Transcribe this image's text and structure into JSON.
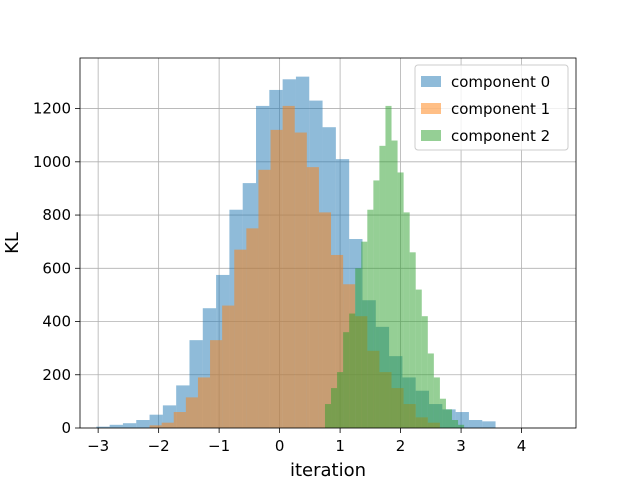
{
  "chart_data": {
    "type": "histogram",
    "title": "",
    "xlabel": "iteration",
    "ylabel": "KL",
    "xlim": [
      -3.3,
      4.9
    ],
    "ylim": [
      0,
      1390
    ],
    "xticks": [
      -3,
      -2,
      -1,
      0,
      1,
      2,
      3,
      4
    ],
    "xtick_labels": [
      "−3",
      "−2",
      "−1",
      "0",
      "1",
      "2",
      "3",
      "4"
    ],
    "yticks": [
      0,
      200,
      400,
      600,
      800,
      1000,
      1200
    ],
    "ytick_labels": [
      "0",
      "200",
      "400",
      "600",
      "800",
      "1000",
      "1200"
    ],
    "grid": true,
    "legend_position": "upper right",
    "bar_opacity": 0.5,
    "series": [
      {
        "name": "component 0",
        "color": "#1f77b4",
        "bin_width": 0.22,
        "bins": [
          [
            -3.03,
            5
          ],
          [
            -2.81,
            12
          ],
          [
            -2.59,
            18
          ],
          [
            -2.37,
            30
          ],
          [
            -2.15,
            50
          ],
          [
            -1.93,
            85
          ],
          [
            -1.71,
            160
          ],
          [
            -1.49,
            330
          ],
          [
            -1.27,
            450
          ],
          [
            -1.05,
            575
          ],
          [
            -0.83,
            820
          ],
          [
            -0.61,
            920
          ],
          [
            -0.39,
            1210
          ],
          [
            -0.17,
            1270
          ],
          [
            0.05,
            1310
          ],
          [
            0.27,
            1320
          ],
          [
            0.49,
            1230
          ],
          [
            0.71,
            1130
          ],
          [
            0.93,
            1010
          ],
          [
            1.15,
            710
          ],
          [
            1.37,
            480
          ],
          [
            1.59,
            380
          ],
          [
            1.81,
            270
          ],
          [
            2.03,
            190
          ],
          [
            2.25,
            140
          ],
          [
            2.47,
            90
          ],
          [
            2.69,
            70
          ],
          [
            2.91,
            60
          ],
          [
            3.13,
            30
          ],
          [
            3.35,
            25
          ]
        ]
      },
      {
        "name": "component 1",
        "color": "#ff7f0e",
        "bin_width": 0.2,
        "bins": [
          [
            -2.15,
            10
          ],
          [
            -1.95,
            20
          ],
          [
            -1.75,
            60
          ],
          [
            -1.55,
            115
          ],
          [
            -1.35,
            190
          ],
          [
            -1.15,
            330
          ],
          [
            -0.95,
            460
          ],
          [
            -0.75,
            670
          ],
          [
            -0.55,
            750
          ],
          [
            -0.35,
            970
          ],
          [
            -0.15,
            1120
          ],
          [
            0.05,
            1210
          ],
          [
            0.25,
            1110
          ],
          [
            0.45,
            980
          ],
          [
            0.65,
            810
          ],
          [
            0.85,
            650
          ],
          [
            1.05,
            540
          ],
          [
            1.25,
            420
          ],
          [
            1.45,
            290
          ],
          [
            1.65,
            210
          ],
          [
            1.85,
            150
          ],
          [
            2.05,
            90
          ],
          [
            2.25,
            40
          ],
          [
            2.45,
            20
          ]
        ]
      },
      {
        "name": "component 2",
        "color": "#2ca02c",
        "bin_width": 0.1,
        "bins": [
          [
            0.75,
            90
          ],
          [
            0.85,
            150
          ],
          [
            0.95,
            210
          ],
          [
            1.05,
            360
          ],
          [
            1.15,
            430
          ],
          [
            1.25,
            600
          ],
          [
            1.35,
            700
          ],
          [
            1.45,
            820
          ],
          [
            1.55,
            930
          ],
          [
            1.65,
            1060
          ],
          [
            1.75,
            1210
          ],
          [
            1.85,
            1080
          ],
          [
            1.95,
            960
          ],
          [
            2.05,
            810
          ],
          [
            2.15,
            660
          ],
          [
            2.25,
            520
          ],
          [
            2.35,
            420
          ],
          [
            2.45,
            280
          ],
          [
            2.55,
            190
          ],
          [
            2.65,
            110
          ],
          [
            2.75,
            70
          ],
          [
            2.85,
            30
          ],
          [
            2.95,
            12
          ]
        ]
      }
    ]
  }
}
